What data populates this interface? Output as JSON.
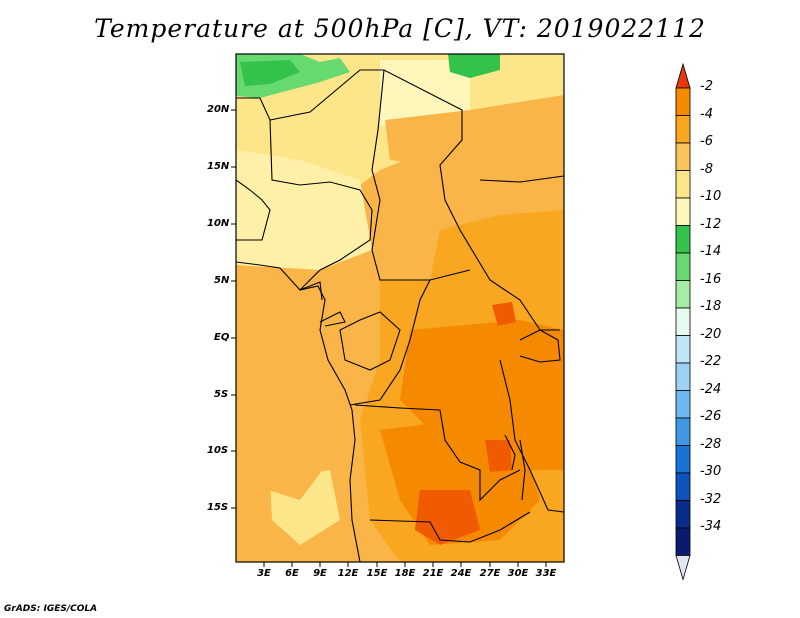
{
  "title": "Temperature at 500hPa [C], VT: 2019022112",
  "credit": "GrADS: IGES/COLA",
  "lat_labels": [
    "20N",
    "15N",
    "10N",
    "5N",
    "EQ",
    "5S",
    "10S",
    "15S"
  ],
  "lon_labels": [
    "3E",
    "6E",
    "9E",
    "12E",
    "15E",
    "18E",
    "21E",
    "24E",
    "27E",
    "30E",
    "33E"
  ],
  "colorbar": {
    "levels": [
      "-2",
      "-4",
      "-6",
      "-8",
      "-10",
      "-12",
      "-14",
      "-16",
      "-18",
      "-20",
      "-22",
      "-24",
      "-26",
      "-28",
      "-30",
      "-32",
      "-34"
    ],
    "colors": [
      "#f05a00",
      "#f58a00",
      "#f9a620",
      "#fbc55a",
      "#fde68a",
      "#fff6bc",
      "#33c24a",
      "#66d970",
      "#a6eca4",
      "#e6faee",
      "#bfe6f7",
      "#9ed0f4",
      "#6fb7ee",
      "#3f98e3",
      "#1a71d6",
      "#0e52be",
      "#0a2d8c",
      "#0a1a6e",
      "#e0e6f2"
    ],
    "top_arrow_color": "#e8380a",
    "bottom_arrow_color": "#e0e6f2"
  }
}
